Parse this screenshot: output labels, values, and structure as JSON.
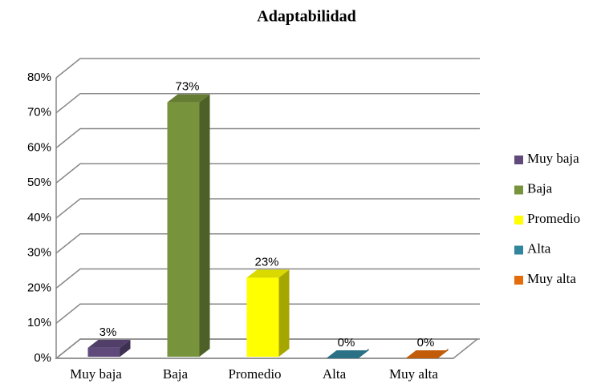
{
  "chart_data": {
    "type": "bar3d",
    "title": "Adaptabilidad",
    "categories": [
      "Muy baja",
      "Baja",
      "Promedio",
      "Alta",
      "Muy alta"
    ],
    "values": [
      3,
      73,
      23,
      0,
      0
    ],
    "value_labels": [
      "3%",
      "73%",
      "23%",
      "0%",
      "0%"
    ],
    "colors": [
      "#604a7b",
      "#77933c",
      "#ffff00",
      "#31859c",
      "#e46c0a"
    ],
    "ylim": [
      0,
      80
    ],
    "yticks": [
      {
        "value": 0,
        "label": "0%"
      },
      {
        "value": 10,
        "label": "10%"
      },
      {
        "value": 20,
        "label": "20%"
      },
      {
        "value": 30,
        "label": "30%"
      },
      {
        "value": 40,
        "label": "40%"
      },
      {
        "value": 50,
        "label": "50%"
      },
      {
        "value": 60,
        "label": "60%"
      },
      {
        "value": 70,
        "label": "70%"
      },
      {
        "value": 80,
        "label": "80%"
      }
    ],
    "grid": true,
    "legend": "right"
  }
}
